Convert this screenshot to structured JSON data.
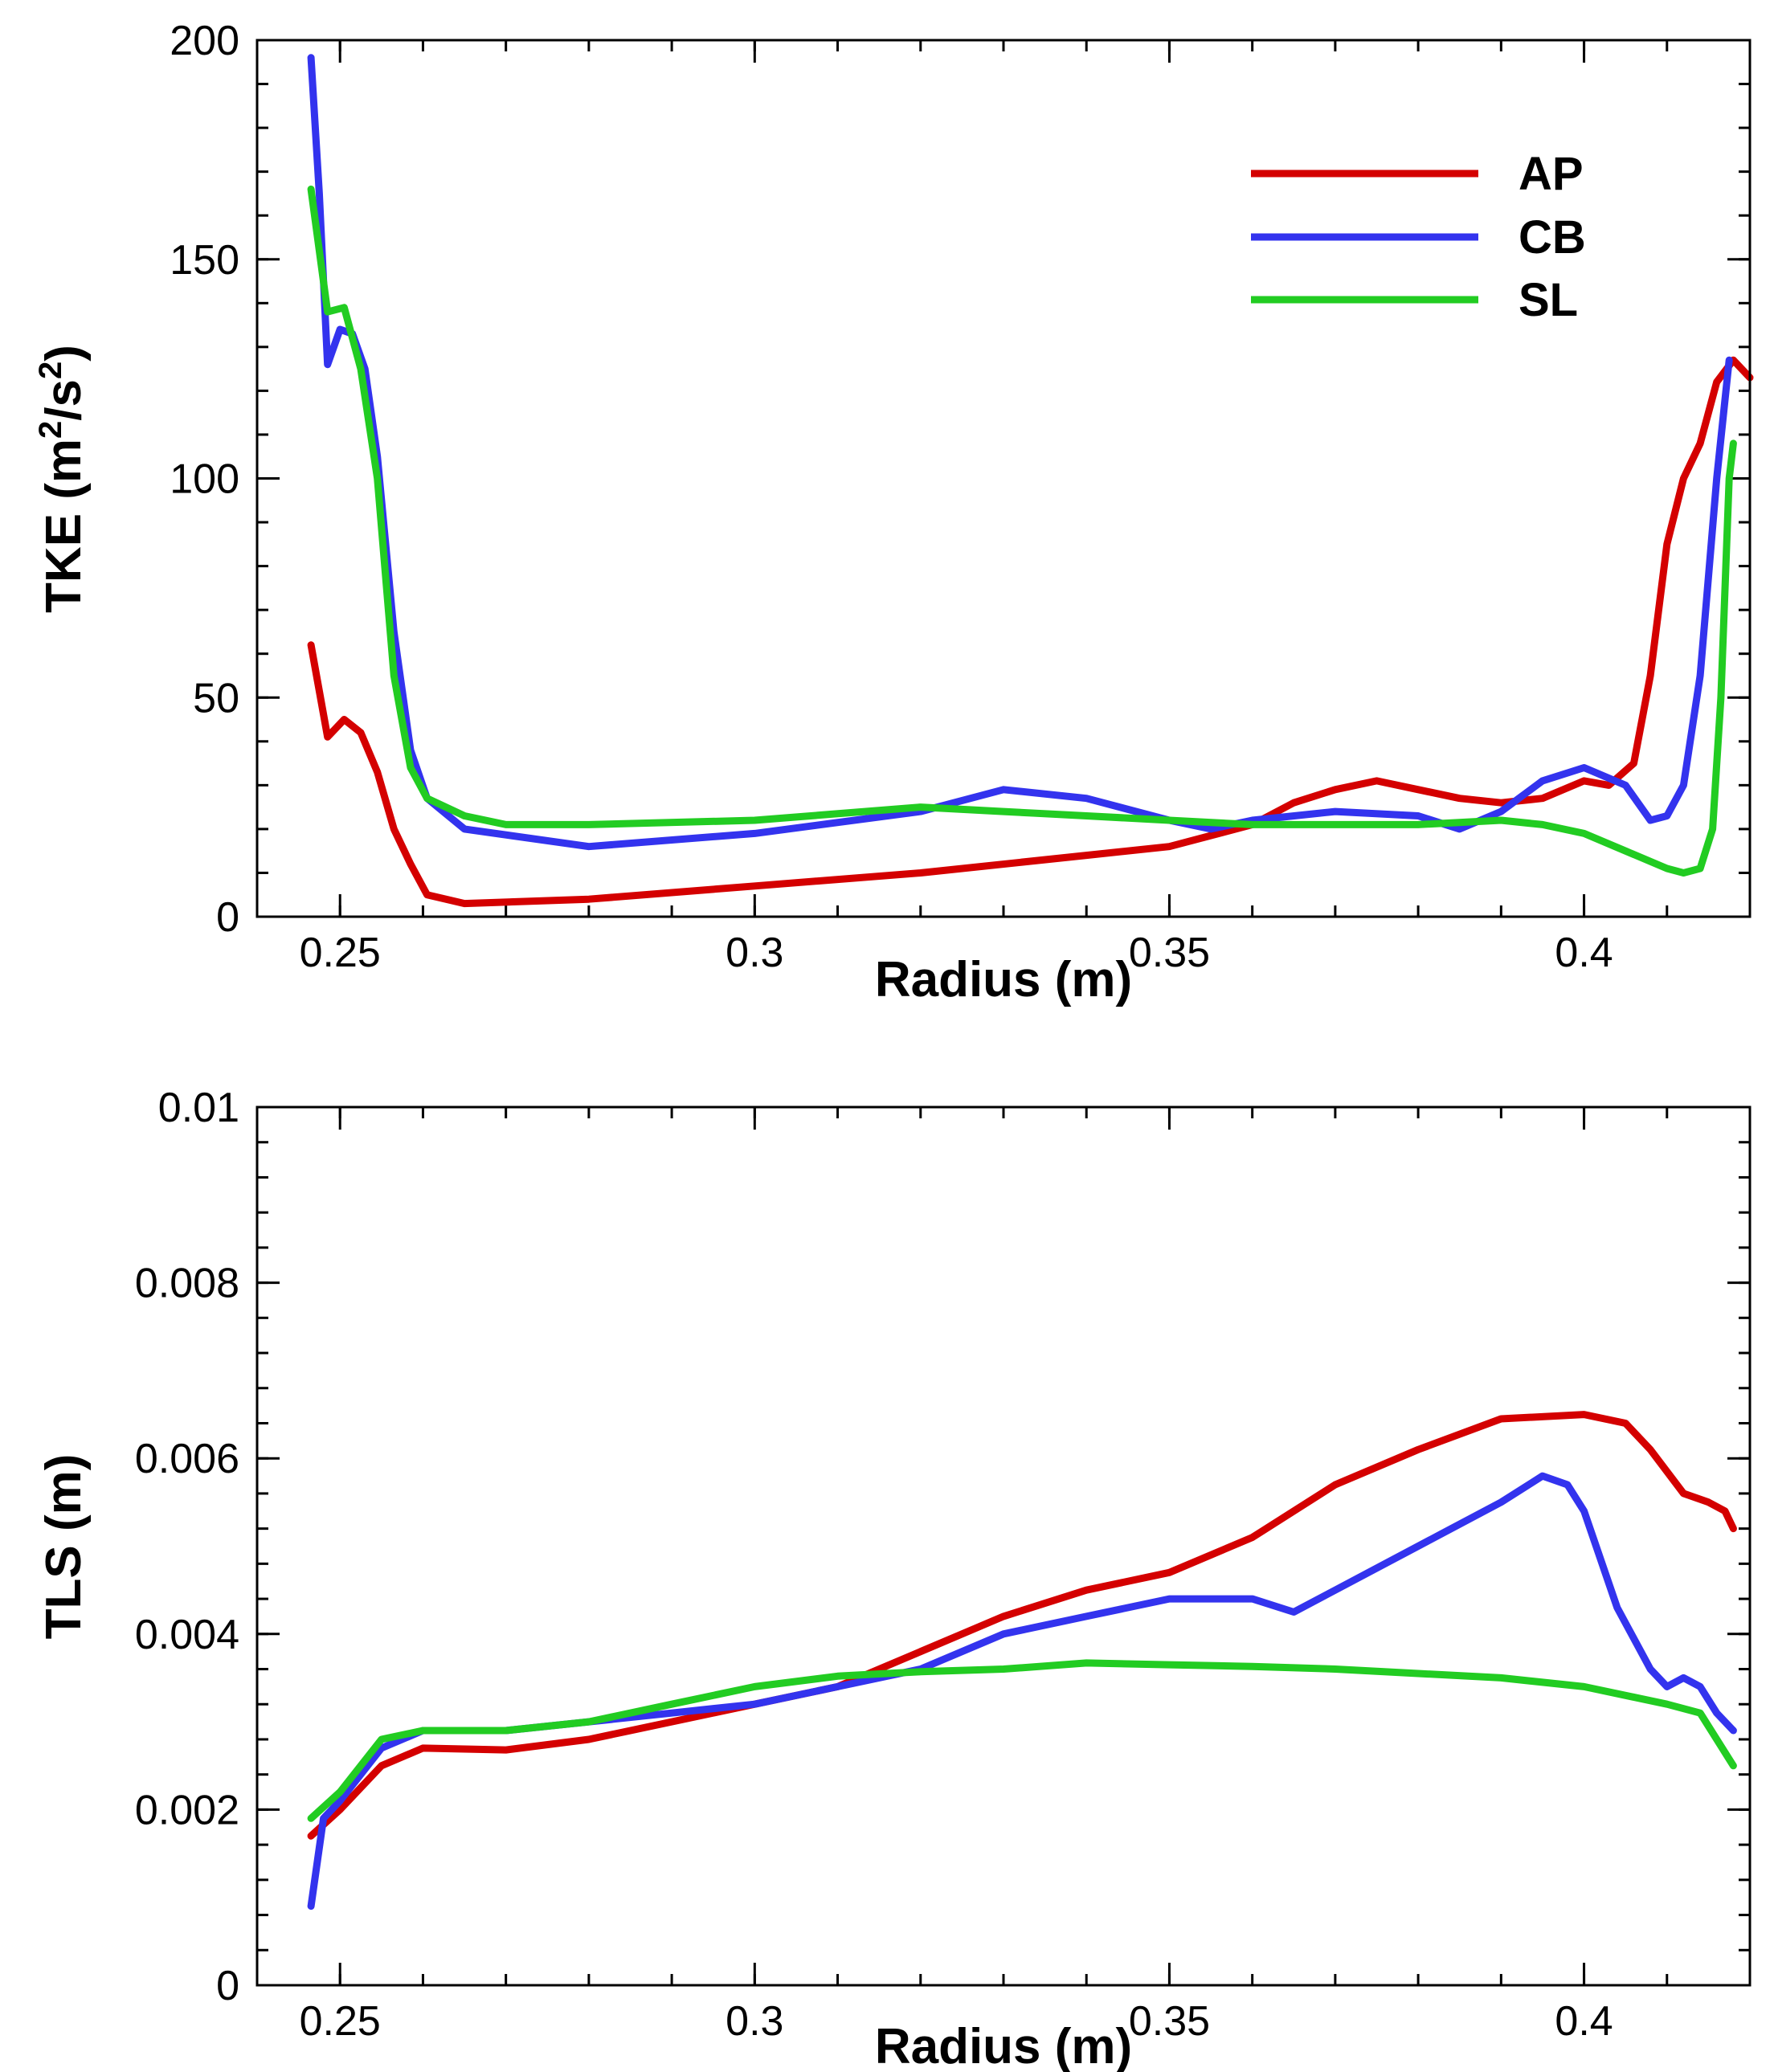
{
  "chart_data": [
    {
      "type": "line",
      "xlabel": "Radius (m)",
      "ylabel_base": "TKE (m",
      "ylabel_sup1": "2",
      "ylabel_mid": "/s",
      "ylabel_sup2": "2",
      "ylabel_end": ")",
      "xlim": [
        0.24,
        0.42
      ],
      "ylim": [
        0,
        200
      ],
      "xticks": [
        0.25,
        0.3,
        0.35,
        0.4
      ],
      "xtick_labels": [
        "0.25",
        "0.3",
        "0.35",
        "0.4"
      ],
      "yticks": [
        0,
        50,
        100,
        150,
        200
      ],
      "ytick_labels": [
        "0",
        "50",
        "100",
        "150",
        "200"
      ],
      "x_minor_step": 0.01,
      "y_minor_step": 10,
      "grid": false,
      "legend": {
        "placement": "top-right"
      },
      "series": [
        {
          "name": "AP",
          "color": "#d40000",
          "points": [
            [
              0.2465,
              62
            ],
            [
              0.2485,
              41
            ],
            [
              0.2505,
              45
            ],
            [
              0.2525,
              42
            ],
            [
              0.2545,
              33
            ],
            [
              0.2565,
              20
            ],
            [
              0.2585,
              12
            ],
            [
              0.2605,
              5
            ],
            [
              0.265,
              3
            ],
            [
              0.28,
              4
            ],
            [
              0.3,
              7
            ],
            [
              0.32,
              10
            ],
            [
              0.34,
              14
            ],
            [
              0.35,
              16
            ],
            [
              0.36,
              21
            ],
            [
              0.365,
              26
            ],
            [
              0.37,
              29
            ],
            [
              0.375,
              31
            ],
            [
              0.38,
              29
            ],
            [
              0.385,
              27
            ],
            [
              0.39,
              26
            ],
            [
              0.395,
              27
            ],
            [
              0.4,
              31
            ],
            [
              0.403,
              30
            ],
            [
              0.406,
              35
            ],
            [
              0.408,
              55
            ],
            [
              0.41,
              85
            ],
            [
              0.412,
              100
            ],
            [
              0.414,
              108
            ],
            [
              0.416,
              122
            ],
            [
              0.418,
              127
            ],
            [
              0.42,
              123
            ]
          ]
        },
        {
          "name": "CB",
          "color": "#3333ee",
          "points": [
            [
              0.2465,
              196
            ],
            [
              0.2475,
              165
            ],
            [
              0.2485,
              126
            ],
            [
              0.25,
              134
            ],
            [
              0.2515,
              133
            ],
            [
              0.253,
              125
            ],
            [
              0.2545,
              105
            ],
            [
              0.2565,
              65
            ],
            [
              0.2585,
              38
            ],
            [
              0.2605,
              27
            ],
            [
              0.265,
              20
            ],
            [
              0.28,
              16
            ],
            [
              0.3,
              19
            ],
            [
              0.32,
              24
            ],
            [
              0.33,
              29
            ],
            [
              0.34,
              27
            ],
            [
              0.35,
              22
            ],
            [
              0.355,
              20
            ],
            [
              0.36,
              22
            ],
            [
              0.37,
              24
            ],
            [
              0.38,
              23
            ],
            [
              0.385,
              20
            ],
            [
              0.39,
              24
            ],
            [
              0.395,
              31
            ],
            [
              0.4,
              34
            ],
            [
              0.405,
              30
            ],
            [
              0.408,
              22
            ],
            [
              0.41,
              23
            ],
            [
              0.412,
              30
            ],
            [
              0.414,
              55
            ],
            [
              0.416,
              100
            ],
            [
              0.4175,
              127
            ]
          ]
        },
        {
          "name": "SL",
          "color": "#22cc22",
          "points": [
            [
              0.2465,
              166
            ],
            [
              0.2485,
              138
            ],
            [
              0.2505,
              139
            ],
            [
              0.2525,
              125
            ],
            [
              0.2545,
              100
            ],
            [
              0.2565,
              55
            ],
            [
              0.2585,
              34
            ],
            [
              0.2605,
              27
            ],
            [
              0.265,
              23
            ],
            [
              0.27,
              21
            ],
            [
              0.28,
              21
            ],
            [
              0.3,
              22
            ],
            [
              0.32,
              25
            ],
            [
              0.33,
              24
            ],
            [
              0.34,
              23
            ],
            [
              0.35,
              22
            ],
            [
              0.36,
              21
            ],
            [
              0.37,
              21
            ],
            [
              0.38,
              21
            ],
            [
              0.39,
              22
            ],
            [
              0.395,
              21
            ],
            [
              0.4,
              19
            ],
            [
              0.405,
              15
            ],
            [
              0.41,
              11
            ],
            [
              0.412,
              10
            ],
            [
              0.414,
              11
            ],
            [
              0.4155,
              20
            ],
            [
              0.4165,
              50
            ],
            [
              0.4175,
              100
            ],
            [
              0.418,
              108
            ]
          ]
        }
      ]
    },
    {
      "type": "line",
      "xlabel": "Radius (m)",
      "ylabel": "TLS (m)",
      "xlim": [
        0.24,
        0.42
      ],
      "ylim": [
        0,
        0.01
      ],
      "xticks": [
        0.25,
        0.3,
        0.35,
        0.4
      ],
      "xtick_labels": [
        "0.25",
        "0.3",
        "0.35",
        "0.4"
      ],
      "yticks": [
        0,
        0.002,
        0.004,
        0.006,
        0.008,
        0.01
      ],
      "ytick_labels": [
        "0",
        "0.002",
        "0.004",
        "0.006",
        "0.008",
        "0.01"
      ],
      "x_minor_step": 0.01,
      "y_minor_step": 0.0004,
      "grid": false,
      "series": [
        {
          "name": "AP",
          "color": "#d40000",
          "points": [
            [
              0.2465,
              0.0017
            ],
            [
              0.25,
              0.002
            ],
            [
              0.255,
              0.0025
            ],
            [
              0.26,
              0.0027
            ],
            [
              0.27,
              0.00268
            ],
            [
              0.28,
              0.0028
            ],
            [
              0.29,
              0.003
            ],
            [
              0.3,
              0.0032
            ],
            [
              0.31,
              0.0034
            ],
            [
              0.32,
              0.0038
            ],
            [
              0.33,
              0.0042
            ],
            [
              0.34,
              0.0045
            ],
            [
              0.35,
              0.0047
            ],
            [
              0.36,
              0.0051
            ],
            [
              0.37,
              0.0057
            ],
            [
              0.38,
              0.0061
            ],
            [
              0.39,
              0.00645
            ],
            [
              0.4,
              0.0065
            ],
            [
              0.405,
              0.0064
            ],
            [
              0.408,
              0.0061
            ],
            [
              0.412,
              0.0056
            ],
            [
              0.415,
              0.0055
            ],
            [
              0.417,
              0.0054
            ],
            [
              0.418,
              0.0052
            ]
          ]
        },
        {
          "name": "CB",
          "color": "#3333ee",
          "points": [
            [
              0.2465,
              0.0009
            ],
            [
              0.248,
              0.0019
            ],
            [
              0.25,
              0.0021
            ],
            [
              0.255,
              0.0027
            ],
            [
              0.26,
              0.0029
            ],
            [
              0.27,
              0.0029
            ],
            [
              0.28,
              0.003
            ],
            [
              0.29,
              0.0031
            ],
            [
              0.3,
              0.0032
            ],
            [
              0.31,
              0.0034
            ],
            [
              0.32,
              0.0036
            ],
            [
              0.33,
              0.004
            ],
            [
              0.34,
              0.0042
            ],
            [
              0.35,
              0.0044
            ],
            [
              0.36,
              0.0044
            ],
            [
              0.365,
              0.00425
            ],
            [
              0.37,
              0.0045
            ],
            [
              0.38,
              0.005
            ],
            [
              0.39,
              0.0055
            ],
            [
              0.395,
              0.0058
            ],
            [
              0.398,
              0.0057
            ],
            [
              0.4,
              0.0054
            ],
            [
              0.404,
              0.0043
            ],
            [
              0.408,
              0.0036
            ],
            [
              0.41,
              0.0034
            ],
            [
              0.412,
              0.0035
            ],
            [
              0.414,
              0.0034
            ],
            [
              0.416,
              0.0031
            ],
            [
              0.418,
              0.0029
            ]
          ]
        },
        {
          "name": "SL",
          "color": "#22cc22",
          "points": [
            [
              0.2465,
              0.0019
            ],
            [
              0.25,
              0.0022
            ],
            [
              0.255,
              0.0028
            ],
            [
              0.26,
              0.0029
            ],
            [
              0.27,
              0.0029
            ],
            [
              0.28,
              0.003
            ],
            [
              0.29,
              0.0032
            ],
            [
              0.3,
              0.0034
            ],
            [
              0.31,
              0.00352
            ],
            [
              0.32,
              0.00357
            ],
            [
              0.33,
              0.0036
            ],
            [
              0.34,
              0.00367
            ],
            [
              0.35,
              0.00365
            ],
            [
              0.36,
              0.00363
            ],
            [
              0.37,
              0.0036
            ],
            [
              0.38,
              0.00355
            ],
            [
              0.39,
              0.0035
            ],
            [
              0.4,
              0.0034
            ],
            [
              0.41,
              0.0032
            ],
            [
              0.414,
              0.0031
            ],
            [
              0.418,
              0.0025
            ]
          ]
        }
      ]
    }
  ]
}
